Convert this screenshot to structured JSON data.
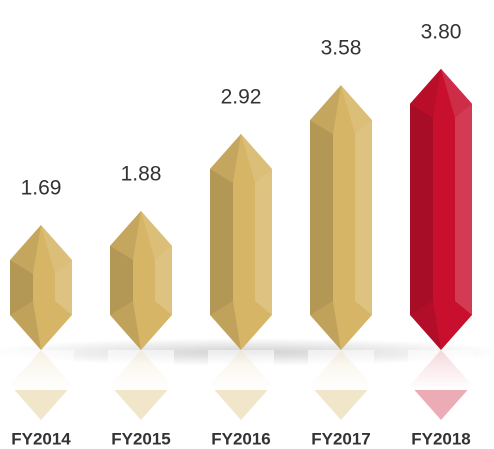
{
  "chart_data": {
    "type": "bar",
    "categories": [
      "FY2014",
      "FY2015",
      "FY2016",
      "FY2017",
      "FY2018"
    ],
    "values": [
      1.69,
      1.88,
      2.92,
      3.58,
      3.8
    ],
    "value_labels": [
      "1.69",
      "1.88",
      "2.92",
      "3.58",
      "3.80"
    ],
    "colors": [
      "#d6b566",
      "#d6b566",
      "#d6b566",
      "#d6b566",
      "#c8102e"
    ]
  }
}
